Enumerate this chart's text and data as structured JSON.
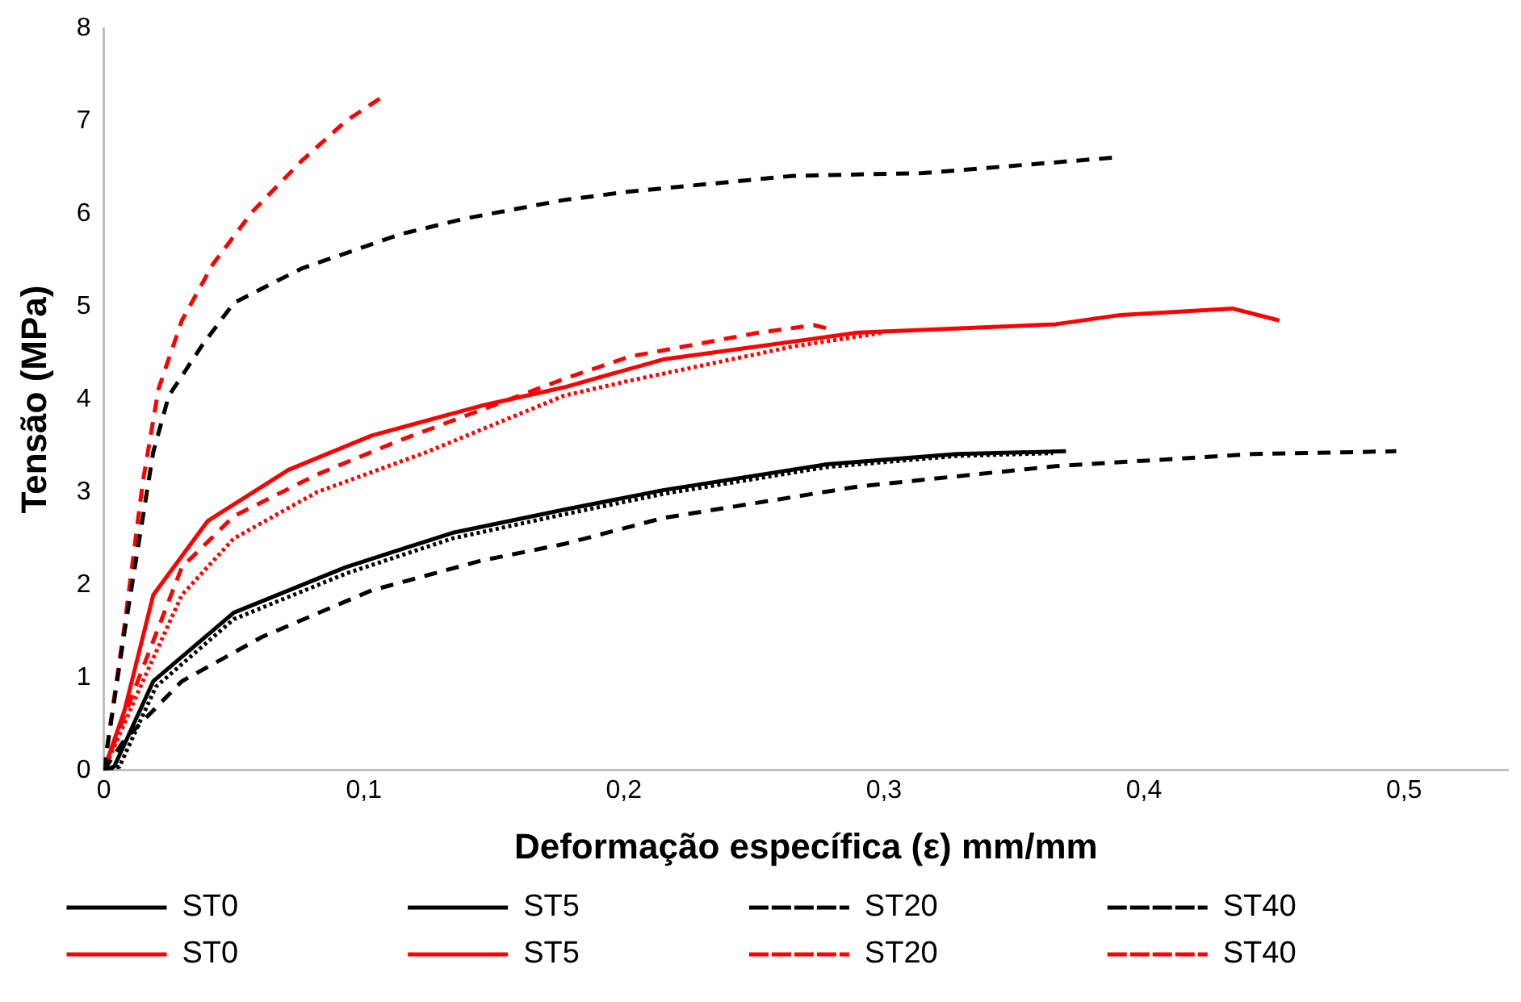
{
  "chart_data": {
    "type": "line",
    "xlabel": "Deformação específica (ε) mm/mm",
    "ylabel": "Tensão (MPa)",
    "xlim": [
      0,
      0.54
    ],
    "xticks": [
      0,
      {
        "value": 0.1,
        "label": "0,1"
      },
      {
        "value": 0.2,
        "label": "0,2"
      },
      {
        "value": 0.3,
        "label": "0,3"
      },
      {
        "value": 0.4,
        "label": "0,4"
      },
      {
        "value": 0.5,
        "label": "0,5"
      }
    ],
    "ylim": [
      0,
      8
    ],
    "yticks": [
      0,
      1,
      2,
      3,
      4,
      5,
      6,
      7,
      8
    ],
    "grid": false,
    "legend": "bottom",
    "marker": "none",
    "series": [
      {
        "name": "ST0",
        "color": "#000000",
        "line_style": "solid",
        "x": [
          0,
          0.004,
          0.019,
          0.05,
          0.093,
          0.134,
          0.177,
          0.215,
          0.278,
          0.328,
          0.37
        ],
        "values": [
          0,
          0.04,
          0.96,
          1.7,
          2.19,
          2.56,
          2.81,
          3.02,
          3.3,
          3.41,
          3.44
        ]
      },
      {
        "name": "ST5",
        "color": "#000000",
        "line_style": "dotted",
        "x": [
          0,
          0.006,
          0.02,
          0.05,
          0.093,
          0.134,
          0.177,
          0.215,
          0.278,
          0.328,
          0.365
        ],
        "values": [
          0,
          0.04,
          0.9,
          1.63,
          2.12,
          2.5,
          2.76,
          2.98,
          3.27,
          3.39,
          3.42
        ]
      },
      {
        "name": "ST20",
        "color": "#000000",
        "line_style": "dashed",
        "x": [
          0,
          0.008,
          0.03,
          0.061,
          0.103,
          0.145,
          0.177,
          0.215,
          0.29,
          0.366,
          0.442,
          0.497
        ],
        "values": [
          0,
          0.33,
          0.96,
          1.44,
          1.94,
          2.26,
          2.44,
          2.72,
          3.06,
          3.28,
          3.41,
          3.44
        ]
      },
      {
        "name": "ST40",
        "color": "#000000",
        "line_style": "dashed",
        "x": [
          0,
          0.008,
          0.019,
          0.025,
          0.038,
          0.05,
          0.076,
          0.114,
          0.139,
          0.177,
          0.202,
          0.265,
          0.315,
          0.39
        ],
        "values": [
          0,
          1.5,
          3.43,
          4.04,
          4.59,
          5.04,
          5.41,
          5.78,
          5.95,
          6.15,
          6.24,
          6.41,
          6.44,
          6.61
        ]
      },
      {
        "name": "ST0",
        "color": "#ff0000",
        "line_style": "solid",
        "x": [
          0,
          0.008,
          0.019,
          0.04,
          0.071,
          0.103,
          0.145,
          0.177,
          0.215,
          0.29,
          0.366,
          0.391,
          0.434,
          0.452
        ],
        "values": [
          0,
          0.65,
          1.89,
          2.69,
          3.24,
          3.61,
          3.93,
          4.13,
          4.43,
          4.72,
          4.81,
          4.91,
          4.98,
          4.85
        ]
      },
      {
        "name": "ST5",
        "color": "#ff0000",
        "line_style": "dotted",
        "x": [
          0,
          0.015,
          0.03,
          0.05,
          0.082,
          0.124,
          0.177,
          0.202,
          0.265,
          0.3
        ],
        "values": [
          0,
          0.96,
          1.89,
          2.5,
          3,
          3.43,
          4.04,
          4.2,
          4.57,
          4.72
        ]
      },
      {
        "name": "ST20",
        "color": "#ff0000",
        "line_style": "dashed",
        "x": [
          0,
          0.013,
          0.03,
          0.05,
          0.082,
          0.114,
          0.177,
          0.202,
          0.252,
          0.273,
          0.279
        ],
        "values": [
          0,
          0.96,
          2.19,
          2.74,
          3.19,
          3.56,
          4.22,
          4.46,
          4.72,
          4.8,
          4.76
        ]
      },
      {
        "name": "ST40",
        "color": "#ff0000",
        "line_style": "dashed",
        "x": [
          0,
          0.008,
          0.015,
          0.021,
          0.03,
          0.042,
          0.057,
          0.076,
          0.093,
          0.107
        ],
        "values": [
          0,
          1.57,
          3.11,
          4.11,
          4.85,
          5.46,
          6.02,
          6.57,
          7,
          7.26
        ]
      }
    ]
  }
}
